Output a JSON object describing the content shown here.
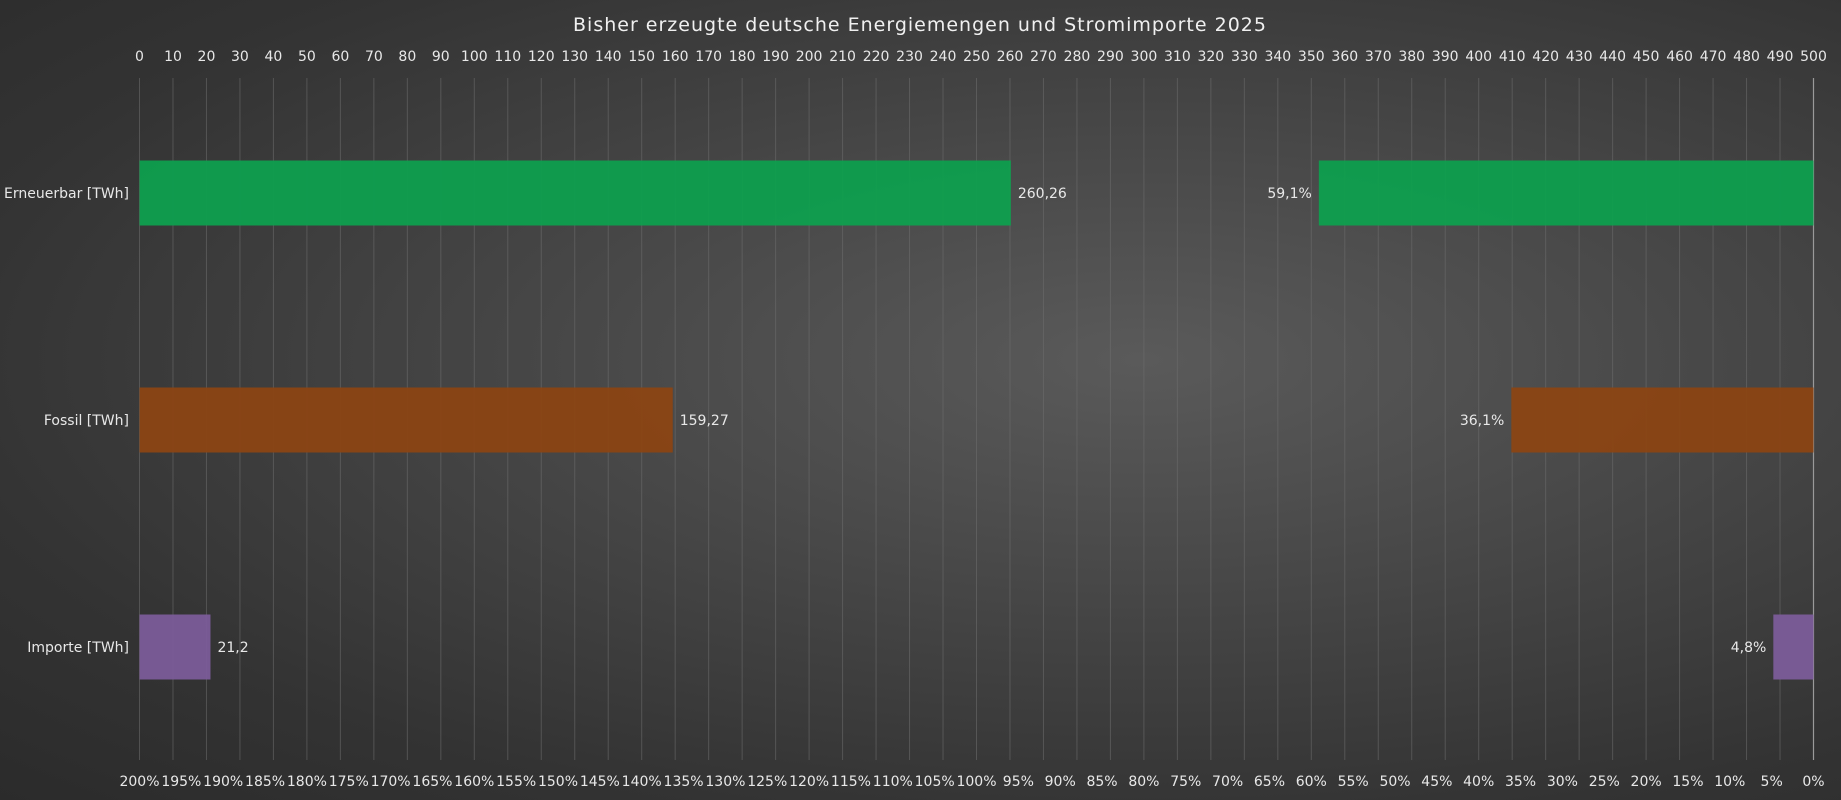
{
  "chart_data": {
    "type": "bar",
    "orientation": "horizontal",
    "title": "Bisher erzeugte deutsche Energiemengen und Stromimporte 2025",
    "categories": [
      "Erneuerbar [TWh]",
      "Fossil [TWh]",
      "Importe [TWh]"
    ],
    "series": [
      {
        "axis": "top",
        "values": [
          260.26,
          159.27,
          21.2
        ],
        "labels": [
          "260,26",
          "159,27",
          "21,2"
        ]
      },
      {
        "axis": "bottom",
        "direction": "reversed",
        "values": [
          59.1,
          36.1,
          4.8
        ],
        "labels": [
          "59,1%",
          "36,1%",
          "4,8%"
        ]
      }
    ],
    "colors": [
      "#0e9f4e",
      "#8b4513",
      "#7b5c99"
    ],
    "top_axis": {
      "range": [
        0,
        500
      ],
      "step": 10,
      "tick_labels": [
        "0",
        "10",
        "20",
        "30",
        "40",
        "50",
        "60",
        "70",
        "80",
        "90",
        "100",
        "110",
        "120",
        "130",
        "140",
        "150",
        "160",
        "170",
        "180",
        "190",
        "200",
        "210",
        "220",
        "230",
        "240",
        "250",
        "260",
        "270",
        "280",
        "290",
        "300",
        "310",
        "320",
        "330",
        "340",
        "350",
        "360",
        "370",
        "380",
        "390",
        "400",
        "410",
        "420",
        "430",
        "440",
        "450",
        "460",
        "470",
        "480",
        "490",
        "500"
      ]
    },
    "bottom_axis": {
      "range": [
        200,
        0
      ],
      "step": 5,
      "tick_labels": [
        "200%",
        "195%",
        "190%",
        "185%",
        "180%",
        "175%",
        "170%",
        "165%",
        "160%",
        "155%",
        "150%",
        "145%",
        "140%",
        "135%",
        "130%",
        "125%",
        "120%",
        "115%",
        "110%",
        "105%",
        "100%",
        "95%",
        "90%",
        "85%",
        "80%",
        "75%",
        "70%",
        "65%",
        "60%",
        "55%",
        "50%",
        "45%",
        "40%",
        "35%",
        "30%",
        "25%",
        "20%",
        "15%",
        "10%",
        "5%",
        "0%"
      ]
    },
    "grid": true,
    "legend": "none"
  }
}
